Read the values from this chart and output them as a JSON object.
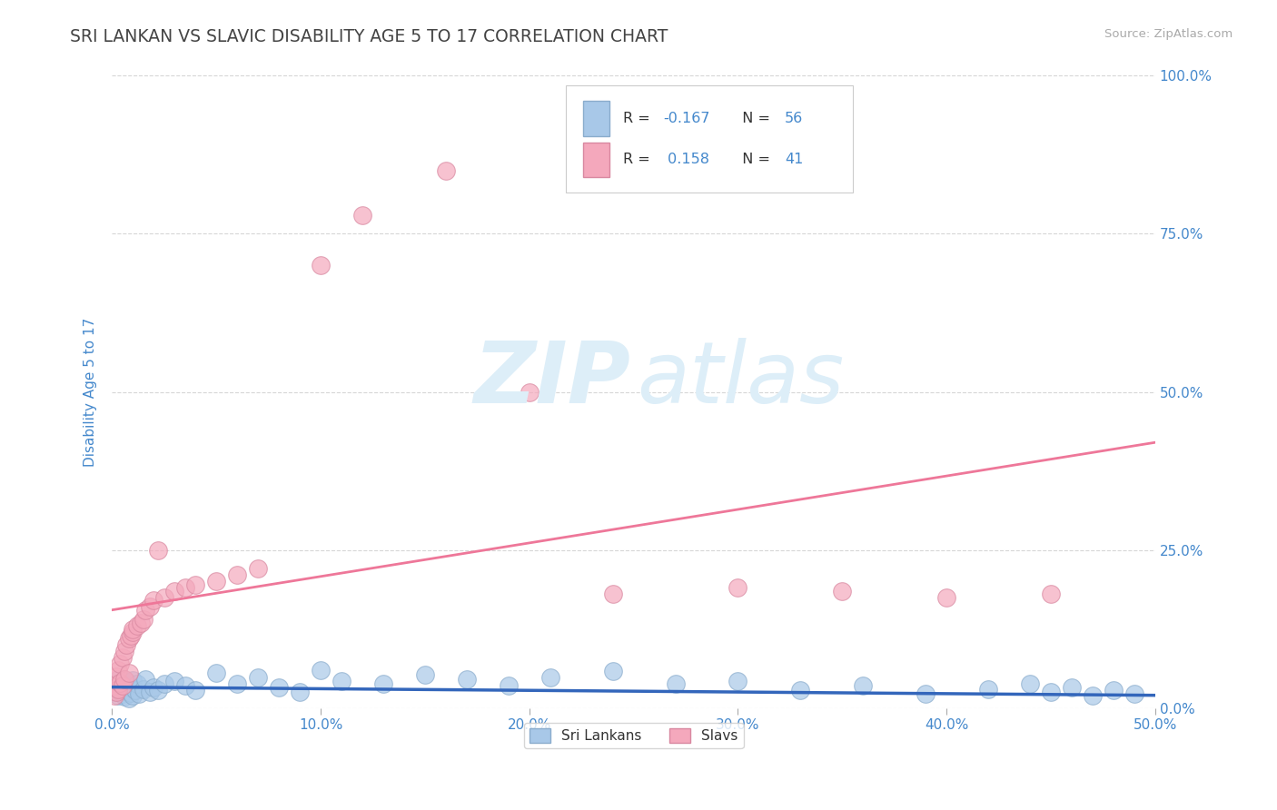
{
  "title": "SRI LANKAN VS SLAVIC DISABILITY AGE 5 TO 17 CORRELATION CHART",
  "source_text": "Source: ZipAtlas.com",
  "ylabel": "Disability Age 5 to 17",
  "y_tick_labels": [
    "0.0%",
    "25.0%",
    "50.0%",
    "75.0%",
    "100.0%"
  ],
  "y_tick_values": [
    0.0,
    0.25,
    0.5,
    0.75,
    1.0
  ],
  "x_tick_labels": [
    "0.0%",
    "10.0%",
    "20.0%",
    "30.0%",
    "40.0%",
    "50.0%"
  ],
  "x_tick_values": [
    0.0,
    0.1,
    0.2,
    0.3,
    0.4,
    0.5
  ],
  "legend_label_1": "Sri Lankans",
  "legend_label_2": "Slavs",
  "r_sri": -0.167,
  "n_sri": 56,
  "r_slav": 0.158,
  "n_slav": 41,
  "blue_color": "#A8C8E8",
  "pink_color": "#F4A8BC",
  "blue_line_color": "#3366BB",
  "pink_line_color": "#EE7799",
  "grid_color": "#CCCCCC",
  "axis_label_color": "#4488CC",
  "watermark_color": "#DDEEF8",
  "background_color": "#FFFFFF",
  "sri_x": [
    0.001,
    0.002,
    0.002,
    0.003,
    0.003,
    0.004,
    0.004,
    0.005,
    0.005,
    0.006,
    0.006,
    0.007,
    0.007,
    0.008,
    0.008,
    0.009,
    0.009,
    0.01,
    0.01,
    0.011,
    0.012,
    0.013,
    0.015,
    0.016,
    0.018,
    0.02,
    0.022,
    0.025,
    0.03,
    0.035,
    0.04,
    0.05,
    0.06,
    0.07,
    0.08,
    0.09,
    0.1,
    0.11,
    0.13,
    0.15,
    0.17,
    0.19,
    0.21,
    0.24,
    0.27,
    0.3,
    0.33,
    0.36,
    0.39,
    0.42,
    0.44,
    0.45,
    0.46,
    0.47,
    0.48,
    0.49
  ],
  "sri_y": [
    0.03,
    0.025,
    0.038,
    0.02,
    0.045,
    0.028,
    0.035,
    0.022,
    0.04,
    0.018,
    0.032,
    0.027,
    0.042,
    0.015,
    0.036,
    0.024,
    0.033,
    0.019,
    0.044,
    0.028,
    0.038,
    0.022,
    0.03,
    0.046,
    0.025,
    0.032,
    0.028,
    0.038,
    0.042,
    0.035,
    0.028,
    0.055,
    0.038,
    0.048,
    0.032,
    0.025,
    0.06,
    0.042,
    0.038,
    0.052,
    0.045,
    0.035,
    0.048,
    0.058,
    0.038,
    0.042,
    0.028,
    0.035,
    0.022,
    0.03,
    0.038,
    0.025,
    0.032,
    0.02,
    0.028,
    0.022
  ],
  "slav_x": [
    0.001,
    0.001,
    0.002,
    0.002,
    0.003,
    0.003,
    0.004,
    0.004,
    0.005,
    0.005,
    0.006,
    0.006,
    0.007,
    0.008,
    0.008,
    0.009,
    0.01,
    0.01,
    0.012,
    0.014,
    0.015,
    0.016,
    0.018,
    0.02,
    0.022,
    0.025,
    0.03,
    0.035,
    0.04,
    0.05,
    0.06,
    0.07,
    0.1,
    0.12,
    0.16,
    0.2,
    0.24,
    0.3,
    0.35,
    0.4,
    0.45
  ],
  "slav_y": [
    0.02,
    0.035,
    0.025,
    0.05,
    0.03,
    0.06,
    0.04,
    0.07,
    0.035,
    0.08,
    0.045,
    0.09,
    0.1,
    0.11,
    0.055,
    0.115,
    0.12,
    0.125,
    0.13,
    0.135,
    0.14,
    0.155,
    0.16,
    0.17,
    0.25,
    0.175,
    0.185,
    0.19,
    0.195,
    0.2,
    0.21,
    0.22,
    0.7,
    0.78,
    0.85,
    0.5,
    0.18,
    0.19,
    0.185,
    0.175,
    0.18
  ],
  "slav_line_x0": 0.0,
  "slav_line_y0": 0.155,
  "slav_line_x1": 0.5,
  "slav_line_y1": 0.42,
  "sri_line_x0": 0.0,
  "sri_line_y0": 0.033,
  "sri_line_x1": 0.5,
  "sri_line_y1": 0.02
}
